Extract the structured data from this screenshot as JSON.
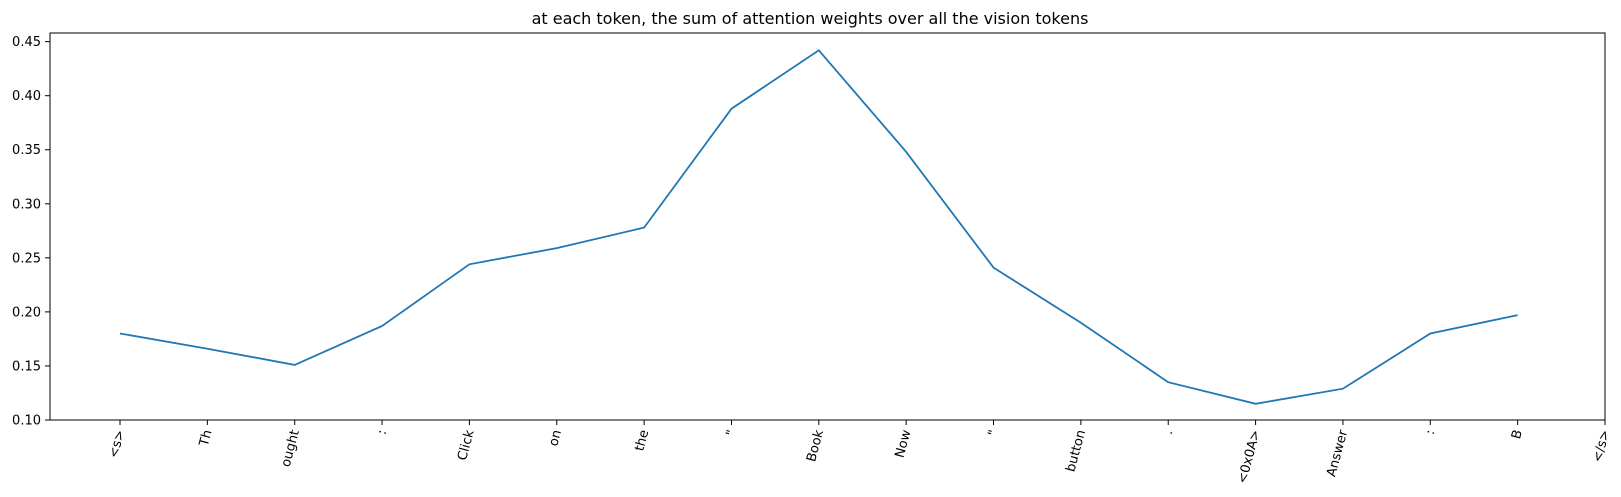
{
  "chart_data": {
    "type": "line",
    "title": "at each token, the sum of attention weights over all the vision tokens",
    "xlabel": "",
    "ylabel": "",
    "categories": [
      "<s>",
      "Th",
      "ought",
      ":",
      "Click",
      "on",
      "the",
      "\"",
      "Book",
      "Now",
      "\"",
      "button",
      ".",
      "<0x0A>",
      "Answer",
      ":",
      "B",
      "</s>"
    ],
    "series": [
      {
        "values": [
          0.18,
          0.166,
          0.151,
          0.187,
          0.244,
          0.259,
          0.278,
          0.388,
          0.442,
          0.348,
          0.241,
          0.19,
          0.135,
          0.115,
          0.129,
          0.18,
          0.197,
          null
        ],
        "color": "#1f77b4"
      }
    ],
    "ylim": [
      0.1,
      0.458
    ],
    "yticks": [
      "0.10",
      "0.15",
      "0.20",
      "0.25",
      "0.30",
      "0.35",
      "0.40",
      "0.45"
    ],
    "xtick_rotation": -75,
    "grid": false,
    "legend": "none"
  }
}
